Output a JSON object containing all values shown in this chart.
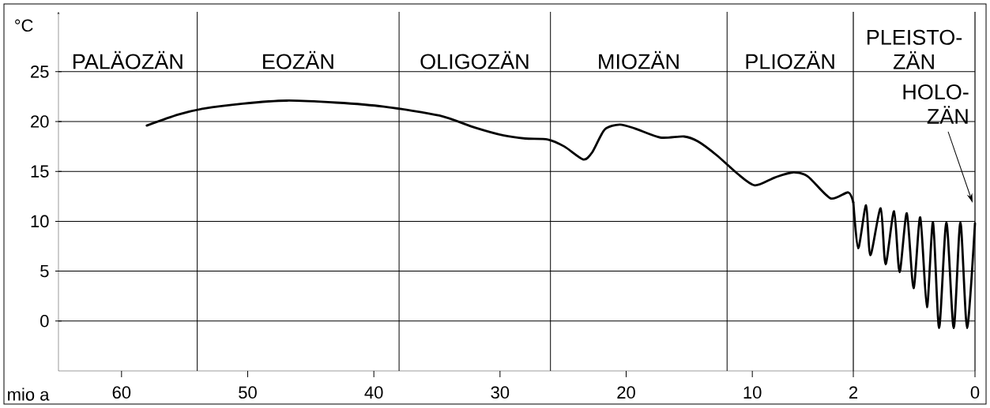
{
  "chart_data": [
    {
      "type": "line",
      "xlabel": "mio a",
      "ylabel": "°C",
      "xlim": [
        65,
        2
      ],
      "xticks": [
        60,
        50,
        40,
        30,
        20,
        10
      ],
      "ylim": [
        -5,
        31
      ],
      "yticks": [
        0,
        5,
        10,
        15,
        20,
        25
      ],
      "grid": "y",
      "ref_lines": [
        {
          "axis": "x",
          "value": 54
        },
        {
          "axis": "x",
          "value": 38
        },
        {
          "axis": "x",
          "value": 26
        },
        {
          "axis": "x",
          "value": 12
        }
      ],
      "annotations": [
        "PALÄOZÄN",
        "EOZÄN",
        "OLIGOZÄN",
        "MIOZÄN",
        "PLIOZÄN"
      ],
      "series": [
        {
          "color": "#000000",
          "x": [
            58,
            55.5,
            53.5,
            50.4,
            46.9,
            43,
            39.2,
            34.8,
            32,
            29.7,
            28,
            26.2,
            24.9,
            23.4,
            22.7,
            21.7,
            20.5,
            19.3,
            17.3,
            15.4,
            14.3,
            12.8,
            11.2,
            9.8,
            8.2,
            6.8,
            5.6,
            3.8,
            2.4,
            2.0
          ],
          "values": [
            19.6,
            20.7,
            21.3,
            21.8,
            22.1,
            21.9,
            21.5,
            20.6,
            19.4,
            18.6,
            18.3,
            18.2,
            17.5,
            16.2,
            16.9,
            19.2,
            19.7,
            19.3,
            18.4,
            18.5,
            18.0,
            16.6,
            14.8,
            13.6,
            14.4,
            14.9,
            14.5,
            12.3,
            12.9,
            11.9
          ]
        }
      ]
    },
    {
      "type": "line",
      "xlim": [
        2,
        0
      ],
      "xticks": [
        2,
        0
      ],
      "ylim": [
        -5,
        31
      ],
      "yticks": [
        0,
        5,
        10,
        15,
        20,
        25
      ],
      "grid": "y",
      "tick_labels": "x",
      "annotations": [
        "PLEISTO-ZÄN",
        "HOLO-ZÄN"
      ],
      "series": [
        {
          "color": "#000000",
          "x": [
            2.0,
            1.92,
            1.79,
            1.72,
            1.55,
            1.47,
            1.33,
            1.24,
            1.12,
            1.01,
            0.9,
            0.79,
            0.69,
            0.59,
            0.47,
            0.35,
            0.24,
            0.13,
            0
          ],
          "values": [
            11.9,
            7.3,
            11.6,
            6.6,
            11.3,
            5.7,
            11.0,
            4.9,
            10.8,
            3.3,
            10.4,
            1.4,
            9.9,
            -0.7,
            9.9,
            -0.7,
            9.9,
            -0.7,
            9.8
          ]
        }
      ]
    }
  ]
}
